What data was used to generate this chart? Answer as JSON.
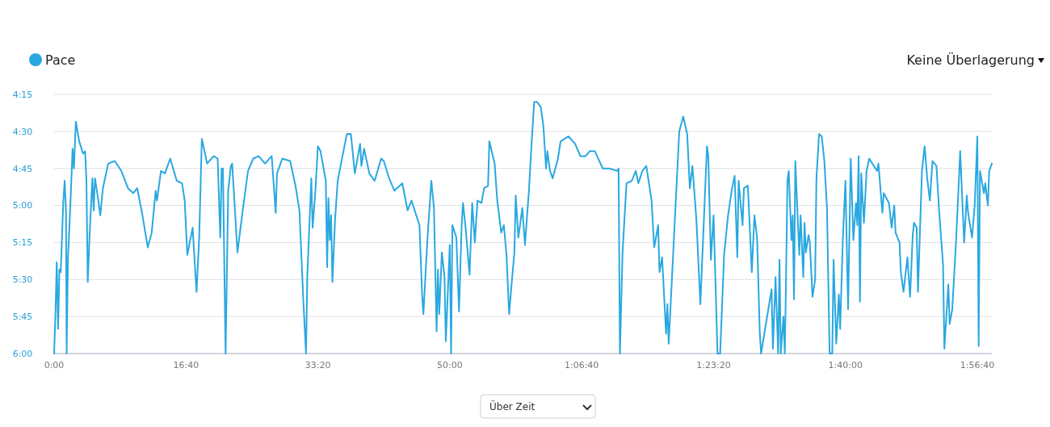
{
  "chart_data": {
    "type": "line",
    "legend": "top left",
    "grid": "y",
    "marker": "none",
    "line_style": "solid",
    "xlim": [
      0,
      7110
    ],
    "ylim": [
      360,
      255
    ],
    "xticks": [
      {
        "value": 0,
        "label": "0:00"
      },
      {
        "value": 1000,
        "label": "16:40"
      },
      {
        "value": 2000,
        "label": "33:20"
      },
      {
        "value": 3000,
        "label": "50:00"
      },
      {
        "value": 4000,
        "label": "1:06:40"
      },
      {
        "value": 5000,
        "label": "1:23:20"
      },
      {
        "value": 6000,
        "label": "1:40:00"
      },
      {
        "value": 7000,
        "label": "1:56:40"
      }
    ],
    "yticks": [
      {
        "value": 255,
        "label": "4:15"
      },
      {
        "value": 270,
        "label": "4:30"
      },
      {
        "value": 285,
        "label": "4:45"
      },
      {
        "value": 300,
        "label": "5:00"
      },
      {
        "value": 315,
        "label": "5:15"
      },
      {
        "value": 330,
        "label": "5:30"
      },
      {
        "value": 345,
        "label": "5:45"
      },
      {
        "value": 360,
        "label": "6:00"
      }
    ],
    "annotations": [
      "Keine Überlagerung",
      "Über Zeit"
    ],
    "x": [
      0,
      10,
      20,
      30,
      40,
      50,
      70,
      80,
      90,
      95,
      105,
      120,
      140,
      150,
      165,
      190,
      220,
      235,
      245,
      255,
      270,
      290,
      300,
      310,
      335,
      350,
      370,
      410,
      460,
      510,
      560,
      600,
      630,
      670,
      710,
      740,
      770,
      780,
      810,
      840,
      880,
      930,
      970,
      990,
      1010,
      1050,
      1080,
      1100,
      1120,
      1160,
      1210,
      1240,
      1260,
      1270,
      1280,
      1300,
      1320,
      1340,
      1350,
      1390,
      1430,
      1470,
      1510,
      1550,
      1600,
      1650,
      1680,
      1690,
      1730,
      1790,
      1830,
      1860,
      1890,
      1910,
      1920,
      1950,
      1960,
      1980,
      2000,
      2020,
      2060,
      2070,
      2080,
      2090,
      2100,
      2110,
      2130,
      2150,
      2190,
      2220,
      2250,
      2280,
      2320,
      2330,
      2350,
      2390,
      2430,
      2480,
      2500,
      2540,
      2580,
      2640,
      2680,
      2710,
      2740,
      2770,
      2790,
      2800,
      2830,
      2860,
      2880,
      2900,
      2910,
      2920,
      2940,
      2960,
      2970,
      3000,
      3010,
      3020,
      3050,
      3070,
      3090,
      3100,
      3120,
      3150,
      3170,
      3190,
      3210,
      3240,
      3260,
      3290,
      3300,
      3340,
      3360,
      3390,
      3410,
      3430,
      3450,
      3470,
      3490,
      3500,
      3520,
      3550,
      3570,
      3600,
      3620,
      3640,
      3660,
      3690,
      3710,
      3730,
      3740,
      3760,
      3780,
      3820,
      3840,
      3900,
      3950,
      3990,
      4030,
      4060,
      4100,
      4160,
      4210,
      4270,
      4280,
      4290,
      4310,
      4340,
      4380,
      4410,
      4430,
      4460,
      4490,
      4530,
      4550,
      4580,
      4590,
      4610,
      4640,
      4650,
      4660,
      4710,
      4740,
      4770,
      4800,
      4820,
      4840,
      4870,
      4900,
      4950,
      4960,
      4980,
      5000,
      5030,
      5050,
      5080,
      5110,
      5140,
      5160,
      5180,
      5190,
      5220,
      5230,
      5260,
      5290,
      5310,
      5330,
      5350,
      5360,
      5440,
      5450,
      5470,
      5490,
      5500,
      5510,
      5530,
      5540,
      5550,
      5560,
      5570,
      5590,
      5600,
      5610,
      5620,
      5630,
      5650,
      5660,
      5680,
      5690,
      5700,
      5720,
      5730,
      5750,
      5770,
      5780,
      5800,
      5820,
      5840,
      5860,
      5880,
      5900,
      5910,
      5930,
      5950,
      5960,
      5980,
      6000,
      6020,
      6040,
      6060,
      6080,
      6090,
      6100,
      6110,
      6120,
      6140,
      6160,
      6180,
      6240,
      6250,
      6280,
      6290,
      6330,
      6350,
      6370,
      6380,
      6410,
      6420,
      6440,
      6470,
      6490,
      6510,
      6520,
      6540,
      6550,
      6580,
      6600,
      6620,
      6640,
      6660,
      6690,
      6710,
      6740,
      6750,
      6780,
      6790,
      6810,
      6840,
      6870,
      6900,
      6920,
      6930,
      6960,
      6980,
      7000,
      7010,
      7020,
      7050,
      7060,
      7080,
      7090,
      7110
    ],
    "series": [
      {
        "name": "Pace",
        "color": "#29a8e0",
        "values": [
          360,
          344,
          323,
          350,
          326,
          327,
          298,
          290,
          302,
          360,
          321,
          304,
          277,
          285,
          266,
          274,
          279,
          278,
          290,
          331,
          311,
          289,
          302,
          289,
          298,
          304,
          293,
          283,
          282,
          286,
          293,
          295,
          293,
          304,
          317,
          311,
          294,
          298,
          286,
          287,
          281,
          290,
          291,
          298,
          320,
          309,
          335,
          313,
          273,
          283,
          280,
          281,
          313,
          285,
          285,
          360,
          294,
          284,
          283,
          319,
          302,
          286,
          281,
          280,
          283,
          280,
          303,
          287,
          281,
          282,
          292,
          302,
          339,
          360,
          328,
          289,
          309,
          295,
          276,
          278,
          290,
          325,
          297,
          314,
          304,
          331,
          306,
          290,
          279,
          271,
          271,
          287,
          275,
          284,
          277,
          287,
          290,
          281,
          282,
          289,
          294,
          291,
          302,
          298,
          303,
          308,
          336,
          344,
          314,
          290,
          301,
          351,
          326,
          344,
          319,
          329,
          355,
          316,
          360,
          308,
          313,
          343,
          308,
          299,
          309,
          328,
          299,
          315,
          298,
          299,
          293,
          292,
          274,
          283,
          298,
          311,
          308,
          320,
          344,
          331,
          319,
          296,
          313,
          301,
          316,
          294,
          275,
          258,
          258,
          260,
          268,
          285,
          278,
          286,
          289,
          281,
          274,
          272,
          275,
          280,
          280,
          278,
          278,
          285,
          285,
          286,
          285,
          360,
          319,
          291,
          290,
          286,
          291,
          286,
          284,
          298,
          317,
          308,
          327,
          321,
          352,
          340,
          356,
          302,
          270,
          264,
          271,
          293,
          284,
          306,
          340,
          276,
          280,
          322,
          304,
          360,
          360,
          320,
          304,
          293,
          288,
          321,
          290,
          308,
          293,
          292,
          327,
          304,
          313,
          351,
          360,
          334,
          358,
          329,
          360,
          322,
          360,
          345,
          360,
          328,
          290,
          286,
          314,
          304,
          338,
          282,
          295,
          320,
          304,
          329,
          307,
          319,
          312,
          315,
          337,
          330,
          289,
          271,
          272,
          282,
          301,
          360,
          360,
          322,
          356,
          336,
          350,
          314,
          290,
          342,
          281,
          314,
          299,
          308,
          280,
          339,
          287,
          307,
          286,
          281,
          286,
          283,
          303,
          295,
          299,
          309,
          300,
          311,
          315,
          327,
          335,
          321,
          337,
          312,
          307,
          309,
          335,
          286,
          276,
          289,
          298,
          282,
          284,
          302,
          324,
          358,
          332,
          348,
          342,
          313,
          278,
          315,
          296,
          303,
          313,
          300,
          272,
          357,
          286,
          295,
          291,
          300,
          286,
          283
        ]
      }
    ]
  }
}
